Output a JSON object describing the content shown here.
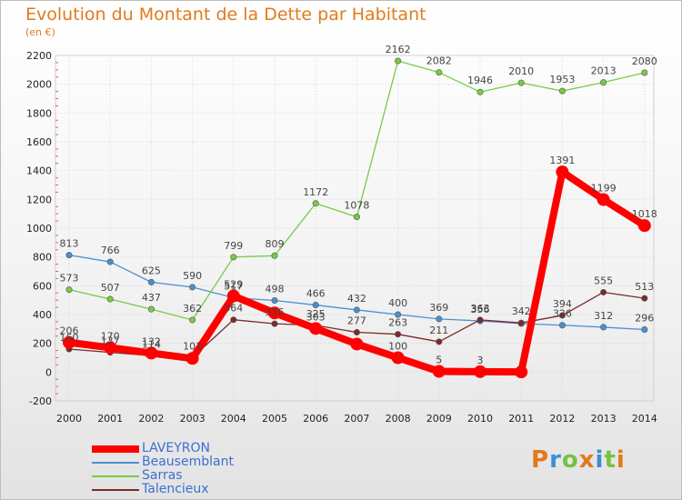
{
  "header": {
    "title": "Evolution du Montant de la Dette par Habitant",
    "subtitle": "(en €)"
  },
  "logo": {
    "text": "Proxiti",
    "colors": [
      "#e07b1a",
      "#3b8fd0",
      "#77c043",
      "#e07b1a",
      "#3b8fd0",
      "#77c043",
      "#e07b1a"
    ]
  },
  "chart_data": {
    "type": "line",
    "title": "Evolution du Montant de la Dette par Habitant",
    "subtitle": "(en €)",
    "x": [
      "2000",
      "2001",
      "2002",
      "2003",
      "2004",
      "2005",
      "2006",
      "2007",
      "2008",
      "2009",
      "2010",
      "2011",
      "2012",
      "2013",
      "2014"
    ],
    "ylim": [
      -200,
      2200
    ],
    "yticks": [
      -200,
      0,
      200,
      400,
      600,
      800,
      1000,
      1200,
      1400,
      1600,
      1800,
      2000,
      2200
    ],
    "grid": true,
    "legend_position": "bottom-left",
    "series": [
      {
        "name": "LAVEYRON",
        "color": "#ff0000",
        "thick": true,
        "values": [
          206,
          170,
          132,
          95,
          529,
          411,
          303,
          195,
          100,
          5,
          3,
          1,
          1391,
          1199,
          1018
        ],
        "labels": [
          "206",
          "170",
          "132",
          "",
          "529",
          "",
          "303",
          "",
          "100",
          "5",
          "3",
          "",
          "1391",
          "1199",
          "1018"
        ]
      },
      {
        "name": "Beausemblant",
        "color": "#4a90d0",
        "thick": false,
        "values": [
          813,
          766,
          625,
          590,
          517,
          498,
          466,
          432,
          400,
          369,
          356,
          337,
          326,
          312,
          296
        ],
        "labels": [
          "813",
          "766",
          "625",
          "590",
          "517",
          "498",
          "466",
          "432",
          "400",
          "369",
          "356",
          "",
          "326",
          "312",
          "296"
        ]
      },
      {
        "name": "Sarras",
        "color": "#77cc44",
        "thick": false,
        "values": [
          573,
          507,
          437,
          362,
          799,
          809,
          1172,
          1078,
          2162,
          2082,
          1946,
          2010,
          1953,
          2013,
          2080
        ],
        "labels": [
          "573",
          "507",
          "437",
          "362",
          "799",
          "809",
          "1172",
          "1078",
          "2162",
          "2082",
          "1946",
          "2010",
          "1953",
          "2013",
          "2080"
        ]
      },
      {
        "name": "Talencieux",
        "color": "#7b2a2a",
        "thick": false,
        "values": [
          160,
          137,
          114,
          101,
          364,
          336,
          325,
          277,
          263,
          211,
          363,
          342,
          394,
          555,
          513
        ],
        "labels": [
          "160",
          "137",
          "114",
          "101",
          "364",
          "336",
          "325",
          "277",
          "263",
          "211",
          "363",
          "342",
          "394",
          "555",
          "513"
        ]
      }
    ]
  }
}
